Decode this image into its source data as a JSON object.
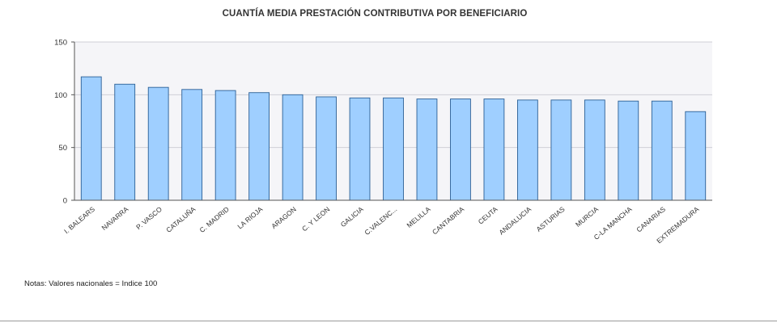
{
  "chart_data": {
    "type": "bar",
    "title": "CUANTÍA MEDIA PRESTACIÓN CONTRIBUTIVA POR BENEFICIARIO",
    "categories": [
      "I. BALEARS",
      "NAVARRA",
      "P. VASCO",
      "CATALUÑA",
      "C. MADRID",
      "LA RIOJA",
      "ARAGON",
      "C. Y LEON",
      "GALICIA",
      "C.VALENC...",
      "MELILLA",
      "CANTABRIA",
      "CEUTA",
      "ANDALUCIA",
      "ASTURIAS",
      "MURCIA",
      "C-LA MANCHA",
      "CANARIAS",
      "EXTREMADURA"
    ],
    "values": [
      117,
      110,
      107,
      105,
      104,
      102,
      100,
      98,
      97,
      97,
      96,
      96,
      96,
      95,
      95,
      95,
      94,
      94,
      84
    ],
    "ylim": [
      0,
      150
    ],
    "yticks": [
      0,
      50,
      100,
      150
    ],
    "xlabel": "",
    "ylabel": "",
    "grid": true,
    "bar_color": "#9fcfff",
    "bar_stroke": "#2b5f95",
    "plot_background": "#f5f5f8"
  },
  "note": "Notas: Valores nacionales = Indice 100"
}
